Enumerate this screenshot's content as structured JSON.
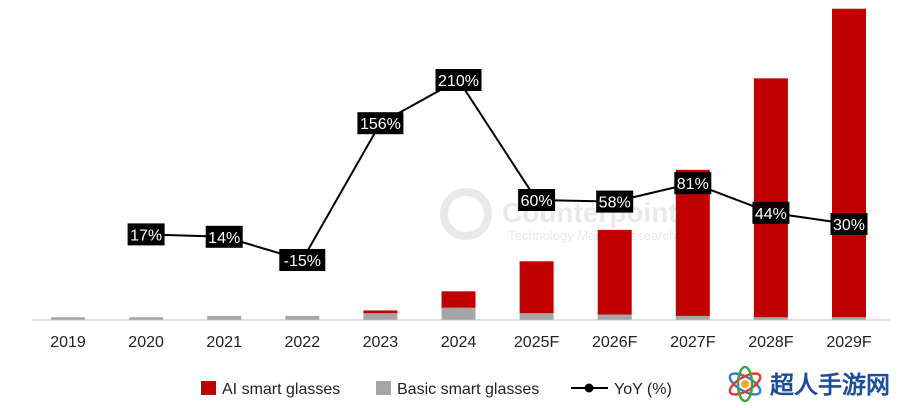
{
  "chart_data": {
    "type": "bar",
    "categories": [
      "2019",
      "2020",
      "2021",
      "2022",
      "2023",
      "2024",
      "2025F",
      "2026F",
      "2027F",
      "2028F",
      "2029F"
    ],
    "series": [
      {
        "name": "AI smart glasses",
        "type": "bar",
        "color": "#c00000",
        "values": [
          0,
          0,
          0,
          0,
          2,
          12,
          38,
          62,
          107,
          175,
          226
        ]
      },
      {
        "name": "Basic smart glasses",
        "type": "bar",
        "color": "#a6a6a6",
        "values": [
          2,
          2,
          3,
          3,
          5,
          9,
          5,
          4,
          3,
          2,
          2
        ]
      },
      {
        "name": "YoY (%)",
        "type": "line",
        "color": "#000000",
        "values": [
          null,
          17,
          14,
          -15,
          156,
          210,
          60,
          58,
          81,
          44,
          30
        ],
        "labels": [
          null,
          "17%",
          "14%",
          "-15%",
          "156%",
          "210%",
          "60%",
          "58%",
          "81%",
          "44%",
          "30%"
        ]
      }
    ],
    "ylim": [
      0,
      230
    ],
    "yoy_ylim": [
      -60,
      250
    ],
    "legend_position": "bottom",
    "grid": false
  },
  "watermark": {
    "brand": "Counterpoint",
    "tagline": "Technology Market Research",
    "corner_logo": "超人手游网"
  },
  "colors": {
    "ai": "#c00000",
    "basic": "#a6a6a6",
    "line": "#000000"
  }
}
